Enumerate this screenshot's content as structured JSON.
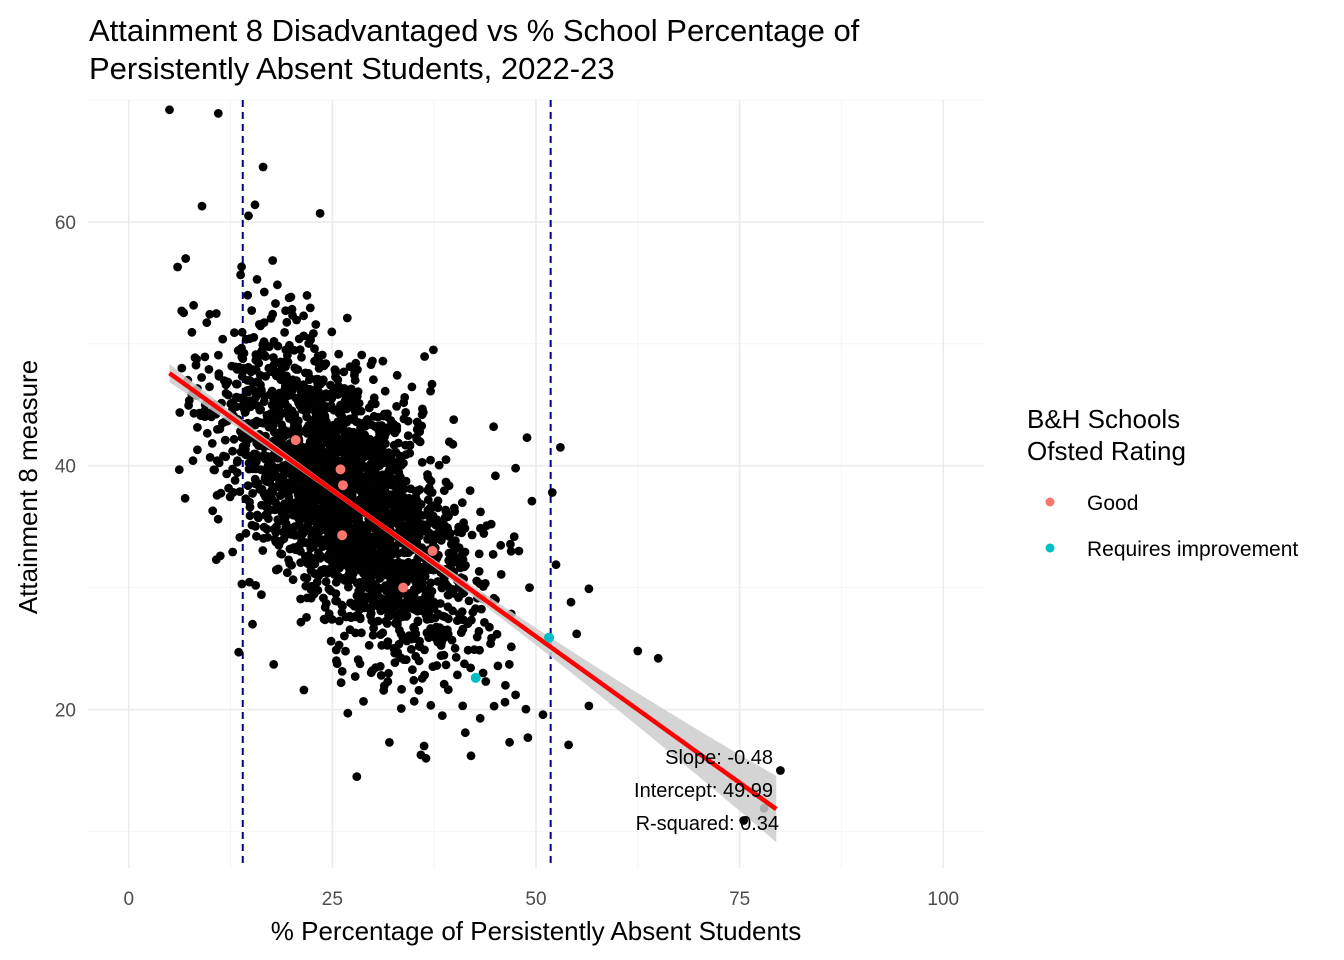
{
  "chart_data": {
    "type": "scatter",
    "title": "Attainment 8 Disadvantaged vs % School Percentage of Persistently Absent Students, 2022-23",
    "title_lines": [
      "Attainment 8 Disadvantaged vs % School Percentage of",
      "Persistently Absent Students, 2022-23"
    ],
    "xlabel": "% Percentage of Persistently Absent Students",
    "ylabel": "Attainment 8 measure",
    "xlim": [
      -5,
      105
    ],
    "ylim": [
      7,
      70
    ],
    "x_ticks": [
      "0",
      "25",
      "50",
      "75",
      "100"
    ],
    "x_tick_values": [
      0,
      25,
      50,
      75,
      100
    ],
    "y_ticks": [
      "20",
      "40",
      "60"
    ],
    "y_tick_values": [
      20,
      40,
      60
    ],
    "grid": true,
    "legend": {
      "title_lines": [
        "B&H Schools",
        "Ofsted Rating"
      ],
      "placement": "right",
      "entries": [
        {
          "label": "Good",
          "color": "#f8766d"
        },
        {
          "label": "Requires improvement",
          "color": "#00bfc4"
        }
      ]
    },
    "reference_lines_x": [
      14,
      51.8
    ],
    "reference_line_color": "#00008b",
    "regression": {
      "slope": -0.48,
      "intercept": 49.99,
      "x_range": [
        5,
        79.5
      ],
      "color": "#ff0000",
      "band_color": "#cccccc"
    },
    "annotations": [
      "Slope: -0.48",
      "Intercept: 49.99",
      "R-squared: 0.34"
    ],
    "highlighted_series": [
      {
        "name": "Good",
        "color": "#f8766d",
        "points": [
          [
            20.5,
            42.1
          ],
          [
            26,
            39.7
          ],
          [
            26.3,
            38.4
          ],
          [
            26.2,
            34.3
          ],
          [
            37.3,
            33.0
          ],
          [
            33.7,
            30.0
          ]
        ]
      },
      {
        "name": "Requires improvement",
        "color": "#00bfc4",
        "points": [
          [
            42.6,
            22.6
          ],
          [
            51.6,
            25.9
          ]
        ]
      }
    ],
    "background_points_color": "#000000",
    "background_points_notable": [
      [
        5,
        69.2
      ],
      [
        11,
        68.9
      ],
      [
        16.5,
        64.5
      ],
      [
        23.5,
        60.7
      ],
      [
        9,
        61.3
      ],
      [
        15.5,
        61.4
      ],
      [
        14.7,
        60.5
      ],
      [
        53,
        41.5
      ],
      [
        52,
        37.8
      ],
      [
        62.5,
        24.8
      ],
      [
        65,
        24.2
      ],
      [
        56.5,
        29.9
      ],
      [
        54.3,
        28.8
      ],
      [
        55,
        26.2
      ],
      [
        56.5,
        20.3
      ],
      [
        54,
        17.1
      ],
      [
        49,
        17.7
      ],
      [
        37.4,
        49.5
      ],
      [
        44.8,
        43.2
      ],
      [
        48.9,
        42.3
      ],
      [
        47.5,
        39.8
      ],
      [
        49.5,
        37.1
      ],
      [
        47.9,
        33.0
      ],
      [
        49.2,
        30.0
      ],
      [
        13.5,
        24.7
      ],
      [
        17.8,
        23.7
      ],
      [
        21.5,
        21.6
      ],
      [
        26.9,
        19.7
      ],
      [
        32,
        17.3
      ],
      [
        36.5,
        16.0
      ],
      [
        28,
        14.5
      ],
      [
        80,
        15.0
      ],
      [
        75.5,
        10.9
      ],
      [
        78,
        11.9
      ],
      [
        41,
        20.3
      ],
      [
        46.2,
        20.6
      ],
      [
        43.5,
        23.0
      ],
      [
        38.5,
        19.5
      ],
      [
        47.5,
        21.2
      ],
      [
        35,
        22.4
      ],
      [
        31,
        22.8
      ],
      [
        10.5,
        45.0
      ],
      [
        8,
        44.3
      ],
      [
        6,
        56.3
      ],
      [
        7,
        57.0
      ],
      [
        6.5,
        52.7
      ],
      [
        13.9,
        30.3
      ],
      [
        15.2,
        27.0
      ]
    ]
  }
}
